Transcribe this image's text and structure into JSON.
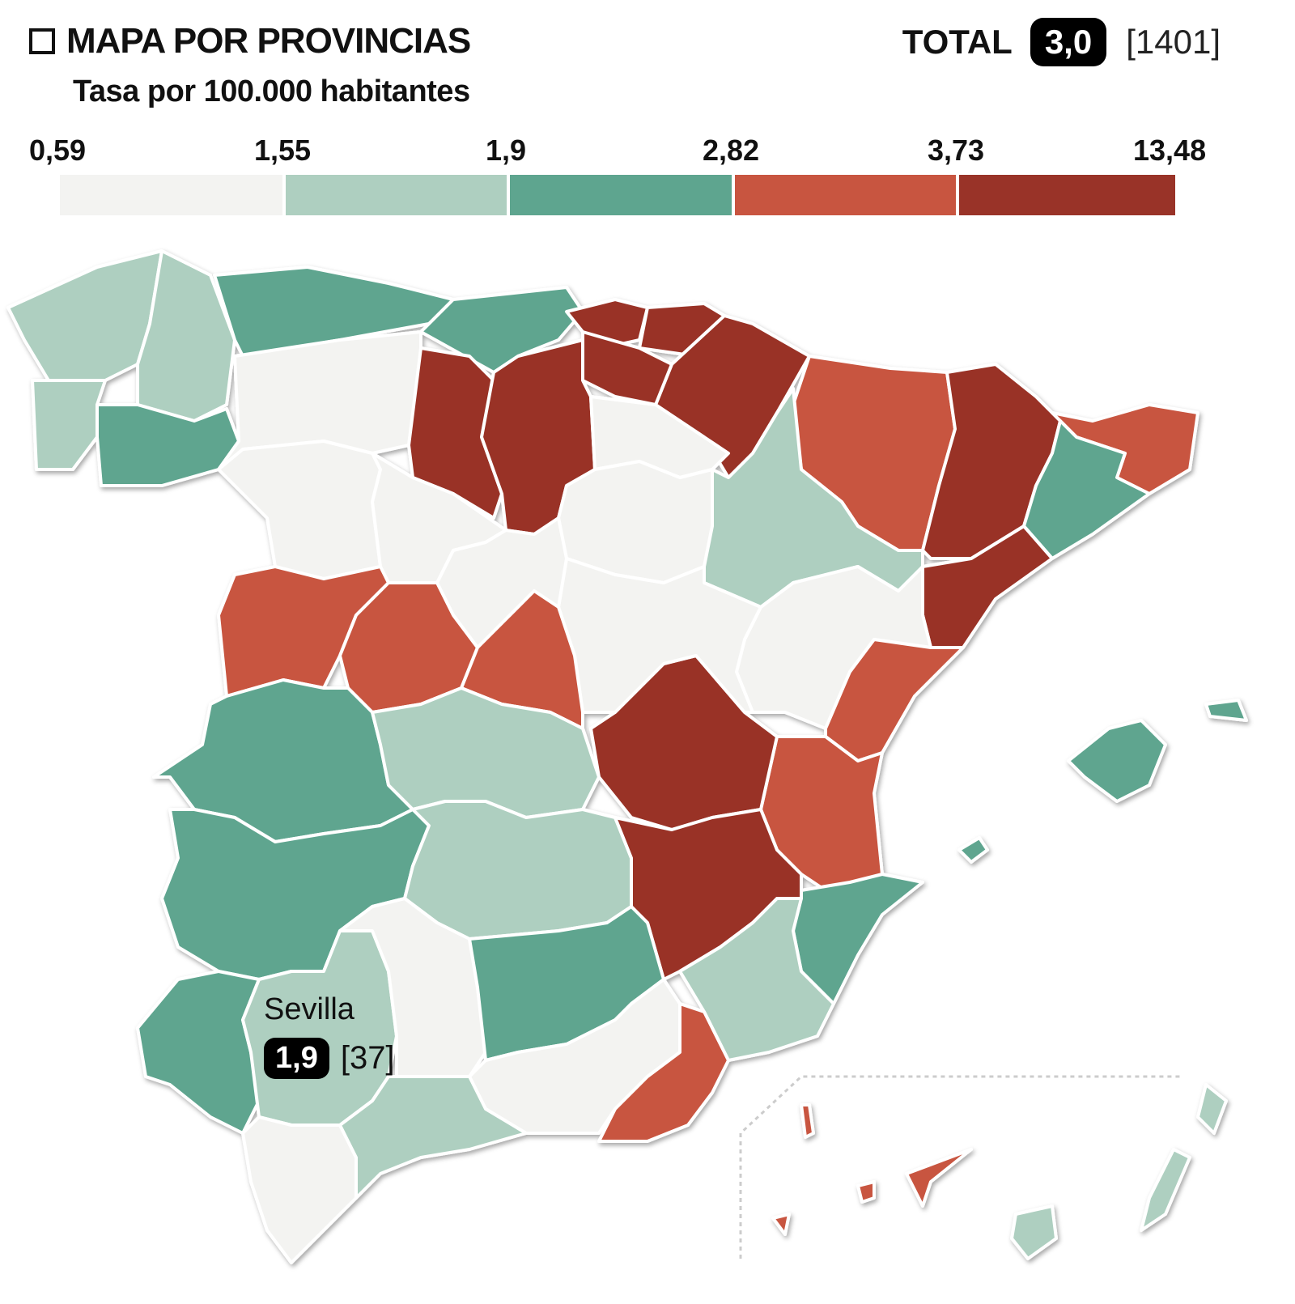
{
  "header": {
    "title": "MAPA POR PROVINCIAS",
    "subtitle": "Tasa por 100.000 habitantes",
    "total_label": "TOTAL",
    "total_value": "3,0",
    "total_count": "[1401]"
  },
  "legend": {
    "breaks": [
      "0,59",
      "1,55",
      "1,9",
      "2,82",
      "3,73",
      "13,48"
    ],
    "colors": [
      "#f3f3f1",
      "#aecfc0",
      "#5ea58f",
      "#c85540",
      "#993328"
    ]
  },
  "highlight": {
    "name": "Sevilla",
    "value": "1,9",
    "count": "[37]"
  },
  "province_levels": [
    1,
    1,
    1,
    2,
    2,
    2,
    4,
    4,
    4,
    4,
    0,
    4,
    4,
    0,
    0,
    0,
    0,
    3,
    4,
    3,
    2,
    4,
    1,
    0,
    3,
    3,
    2,
    4,
    0,
    0,
    3,
    3,
    3,
    2,
    1,
    2,
    1,
    4,
    1,
    2,
    1,
    0,
    2,
    0,
    3,
    0,
    1
  ],
  "island_levels": [
    2,
    2,
    2,
    1,
    1,
    1,
    3,
    3,
    3,
    3
  ]
}
